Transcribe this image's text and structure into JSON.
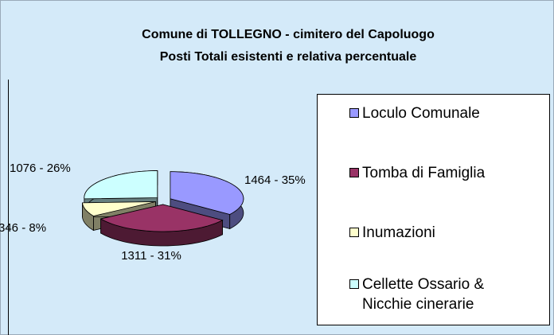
{
  "chart_data": {
    "type": "pie",
    "title": "Comune di TOLLEGNO - cimitero del Capoluogo",
    "subtitle": "Posti Totali esistenti e relativa percentuale",
    "categories": [
      "Loculo Comunale",
      "Tomba di Famiglia",
      "Inumazioni",
      "Cellette Ossario & Nicchie cinerarie"
    ],
    "values": [
      1464,
      1311,
      346,
      1076
    ],
    "value_labels": [
      "1464 - 35%",
      "1311 - 31%",
      "346 - 8%",
      "1076 - 26%"
    ],
    "colors": [
      "#9999ff",
      "#993366",
      "#ffffcc",
      "#ccffff"
    ],
    "legend": "right"
  }
}
